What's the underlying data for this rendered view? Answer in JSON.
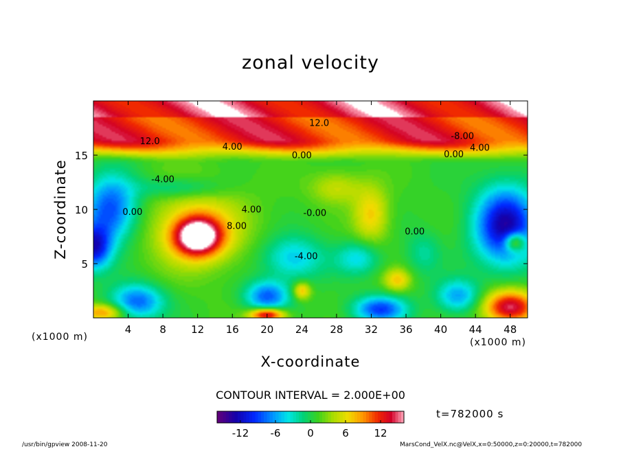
{
  "chart_data": {
    "type": "heatmap",
    "title": "zonal velocity",
    "xlabel": "X-coordinate",
    "ylabel": "Z-coordinate",
    "x_unit_labels": [
      "(x1000 m)",
      "(x1000 m)"
    ],
    "xticks": [
      "4",
      "8",
      "12",
      "16",
      "20",
      "24",
      "28",
      "32",
      "36",
      "40",
      "44",
      "48"
    ],
    "yticks": [
      "5",
      "10",
      "15"
    ],
    "xlim": [
      0,
      50
    ],
    "ylim": [
      0,
      20
    ],
    "contour_labels": [
      {
        "text": "12.0",
        "x": 26,
        "y": 17.7
      },
      {
        "text": "12.0",
        "x": 6.5,
        "y": 16.0
      },
      {
        "text": "-8.00",
        "x": 42.5,
        "y": 16.5
      },
      {
        "text": "4.00",
        "x": 16,
        "y": 15.5
      },
      {
        "text": "4.00",
        "x": 44.5,
        "y": 15.4
      },
      {
        "text": "0.00",
        "x": 24,
        "y": 14.7
      },
      {
        "text": "0.00",
        "x": 41.5,
        "y": 14.8
      },
      {
        "text": "-4.00",
        "x": 8,
        "y": 12.5
      },
      {
        "text": "0.00",
        "x": 4.5,
        "y": 9.5
      },
      {
        "text": "4.00",
        "x": 18.2,
        "y": 9.7
      },
      {
        "text": "8.00",
        "x": 16.5,
        "y": 8.2
      },
      {
        "text": "-0.00",
        "x": 25.5,
        "y": 9.4
      },
      {
        "text": "0.00",
        "x": 37,
        "y": 7.7
      },
      {
        "text": "-4.00",
        "x": 24.5,
        "y": 5.4
      }
    ],
    "colorbar": {
      "min": -16,
      "max": 16,
      "step": 0.5,
      "ticks": [
        "-12",
        "-6",
        "0",
        "6",
        "12"
      ],
      "tick_values": [
        -12,
        -6,
        0,
        6,
        12
      ]
    },
    "features": [
      {
        "x": 12,
        "y": 7.5,
        "value": 17,
        "sx": 2.8,
        "sy": 1.8
      },
      {
        "x": 12,
        "y": 8.5,
        "value": 5,
        "sx": 6,
        "sy": 4
      },
      {
        "x": 2,
        "y": 10,
        "value": -10,
        "sx": 3,
        "sy": 3
      },
      {
        "x": 0,
        "y": 6.5,
        "value": -12,
        "sx": 2,
        "sy": 2
      },
      {
        "x": 47.5,
        "y": 8.5,
        "value": -14,
        "sx": 3.5,
        "sy": 3.5
      },
      {
        "x": 48.5,
        "y": 7,
        "value": 10,
        "sx": 1.2,
        "sy": 0.9
      },
      {
        "x": 5,
        "y": 1.5,
        "value": -9,
        "sx": 3,
        "sy": 1.6
      },
      {
        "x": 20,
        "y": 2,
        "value": -9,
        "sx": 2.5,
        "sy": 1.4
      },
      {
        "x": 20,
        "y": 0.3,
        "value": 14,
        "sx": 2,
        "sy": 0.6
      },
      {
        "x": 33,
        "y": 0.8,
        "value": -10,
        "sx": 3,
        "sy": 1.2
      },
      {
        "x": 24,
        "y": 2.5,
        "value": 7,
        "sx": 1,
        "sy": 0.8
      },
      {
        "x": 23,
        "y": 5.5,
        "value": -6,
        "sx": 3.5,
        "sy": 2
      },
      {
        "x": 30.5,
        "y": 5.5,
        "value": -5,
        "sx": 2.5,
        "sy": 1.5
      },
      {
        "x": 42,
        "y": 2,
        "value": -7,
        "sx": 2.5,
        "sy": 1.5
      },
      {
        "x": 48,
        "y": 1,
        "value": 14,
        "sx": 3,
        "sy": 1.5
      },
      {
        "x": 1,
        "y": 0.5,
        "value": 8,
        "sx": 2.5,
        "sy": 0.8
      },
      {
        "x": 32,
        "y": 9.5,
        "value": 6,
        "sx": 2,
        "sy": 2.5
      },
      {
        "x": 28,
        "y": 12,
        "value": 4,
        "sx": 3,
        "sy": 1.5
      },
      {
        "x": 35,
        "y": 3.5,
        "value": 6,
        "sx": 1.5,
        "sy": 1
      },
      {
        "x": 38,
        "y": 6,
        "value": -3,
        "sx": 2,
        "sy": 2
      },
      {
        "x": 10,
        "y": 12,
        "value": -4,
        "sx": 5,
        "sy": 1
      }
    ]
  },
  "axis_unit_x": "(x1000 m)",
  "axis_unit_y": "(x1000 m)",
  "contour_interval": "CONTOUR INTERVAL = 2.000E+00",
  "time_label": "t=782000 s",
  "footer_left": "/usr/bin/gpview  2008-11-20",
  "footer_right": "MarsCond_VelX.nc@VelX,x=0:50000,z=0:20000,t=782000"
}
